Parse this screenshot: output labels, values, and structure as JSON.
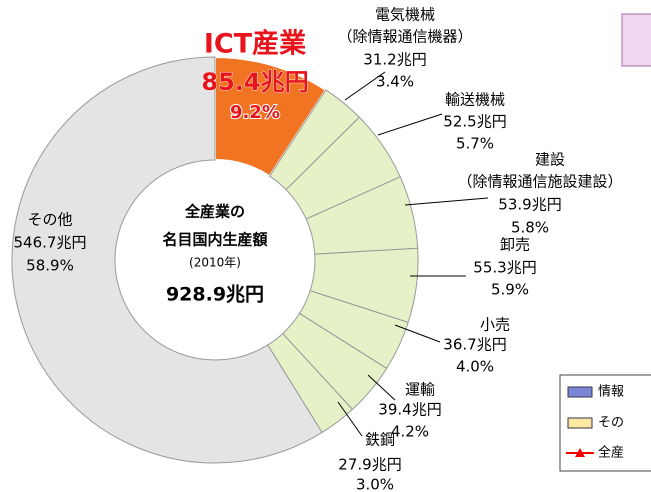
{
  "chart_data": {
    "type": "donut",
    "categories": [
      "ICT産業",
      "電気機械",
      "輸送機械",
      "建設",
      "卸売",
      "小売",
      "運輸",
      "鉄鋼",
      "その他"
    ],
    "notes": [
      null,
      "（除情報通信機器）",
      null,
      "（除情報通信施設建設）",
      null,
      null,
      null,
      null,
      null
    ],
    "values": [
      9.2,
      3.4,
      5.7,
      5.8,
      5.9,
      4.0,
      4.2,
      3.0,
      58.9
    ],
    "value_labels": [
      "9.2%",
      "3.4%",
      "5.7%",
      "5.8%",
      "5.9%",
      "4.0%",
      "4.2%",
      "3.0%",
      "58.9%"
    ],
    "amounts": [
      85.4,
      31.2,
      52.5,
      53.9,
      55.3,
      36.7,
      39.4,
      27.9,
      546.7
    ],
    "amount_labels": [
      "85.4兆円",
      "31.2兆円",
      "52.5兆円",
      "53.9兆円",
      "55.3兆円",
      "36.7兆円",
      "39.4兆円",
      "27.9兆円",
      "546.7兆円"
    ],
    "colors": [
      "#f07422",
      "#e6f1c8",
      "#e6f1c8",
      "#e6f1c8",
      "#e6f1c8",
      "#e6f1c8",
      "#e6f1c8",
      "#e6f1c8",
      "#e4e4e4"
    ],
    "center_lines": [
      "全産業の",
      "名目国内生産額",
      "(2010年)",
      "928.9兆円"
    ]
  },
  "legend_fragment": [
    "情報",
    "その",
    "全産"
  ]
}
